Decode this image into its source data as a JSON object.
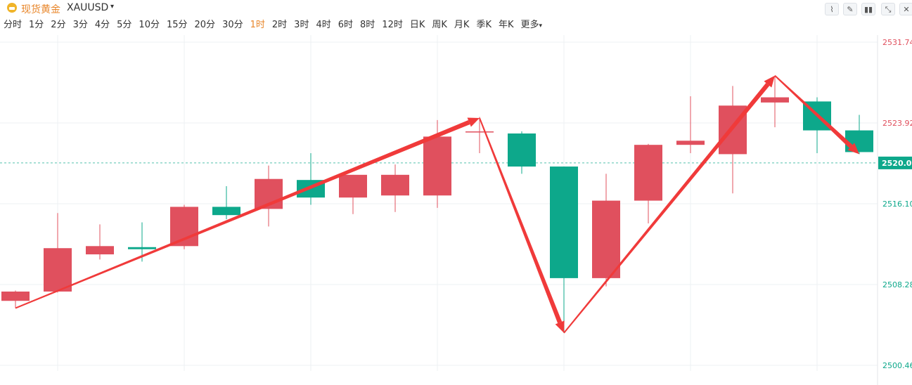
{
  "header": {
    "name": "现货黄金",
    "symbol": "XAUUSD",
    "caret": "▾",
    "tools_left": [
      "indicator-icon",
      "pen-icon",
      "candle-icon"
    ],
    "tools_right": [
      "collapse-icon",
      "close-icon"
    ],
    "tool_glyphs": [
      "⌇",
      "✎",
      "▮▮",
      "⤡",
      "✕"
    ]
  },
  "periods": [
    {
      "label": "分时"
    },
    {
      "label": "1分"
    },
    {
      "label": "2分"
    },
    {
      "label": "3分"
    },
    {
      "label": "4分"
    },
    {
      "label": "5分"
    },
    {
      "label": "10分"
    },
    {
      "label": "15分"
    },
    {
      "label": "20分"
    },
    {
      "label": "30分"
    },
    {
      "label": "1时",
      "active": true
    },
    {
      "label": "2时"
    },
    {
      "label": "3时"
    },
    {
      "label": "4时"
    },
    {
      "label": "6时"
    },
    {
      "label": "8时"
    },
    {
      "label": "12时"
    },
    {
      "label": "日K"
    },
    {
      "label": "周K"
    },
    {
      "label": "月K"
    },
    {
      "label": "季K"
    },
    {
      "label": "年K"
    },
    {
      "label": "更多"
    }
  ],
  "more_caret": "▾",
  "colors": {
    "up": "#e0505e",
    "down": "#0da88b",
    "arrow": "#f03a3a",
    "grid": "#eef0f3",
    "price_tag_bg": "#0da88b"
  },
  "chart_data": {
    "type": "candlestick",
    "ylim": [
      2500.46,
      2531.74
    ],
    "yticks": [
      {
        "label": "2531.74",
        "value": 2531.74,
        "color": "#e0505e"
      },
      {
        "label": "2523.92",
        "value": 2523.92,
        "color": "#e0505e"
      },
      {
        "label": "2516.10",
        "value": 2516.1,
        "color": "#0da88b"
      },
      {
        "label": "2508.28",
        "value": 2508.28,
        "color": "#0da88b"
      },
      {
        "label": "2500.46",
        "value": 2500.46,
        "color": "#0da88b"
      }
    ],
    "current_price": {
      "label": "2520.0",
      "value": 2520.05
    },
    "candles": [
      {
        "open": 2506.7,
        "close": 2507.6,
        "high": 2507.7,
        "low": 2506.0
      },
      {
        "open": 2507.6,
        "close": 2511.8,
        "high": 2515.2,
        "low": 2507.5
      },
      {
        "open": 2511.2,
        "close": 2512.0,
        "high": 2514.1,
        "low": 2510.7
      },
      {
        "open": 2511.9,
        "close": 2511.7,
        "high": 2514.3,
        "low": 2510.5
      },
      {
        "open": 2512.0,
        "close": 2515.8,
        "high": 2516.0,
        "low": 2511.7
      },
      {
        "open": 2515.8,
        "close": 2515.0,
        "high": 2517.8,
        "low": 2514.6
      },
      {
        "open": 2515.6,
        "close": 2518.5,
        "high": 2519.8,
        "low": 2513.9
      },
      {
        "open": 2518.4,
        "close": 2516.7,
        "high": 2521.0,
        "low": 2516.0
      },
      {
        "open": 2516.7,
        "close": 2518.9,
        "high": 2518.9,
        "low": 2515.1
      },
      {
        "open": 2516.9,
        "close": 2518.9,
        "high": 2519.9,
        "low": 2515.3
      },
      {
        "open": 2516.9,
        "close": 2522.6,
        "high": 2524.2,
        "low": 2515.7
      },
      {
        "open": 2523.1,
        "close": 2523.1,
        "high": 2524.5,
        "low": 2521.0
      },
      {
        "open": 2522.9,
        "close": 2519.7,
        "high": 2523.1,
        "low": 2519.0
      },
      {
        "open": 2519.7,
        "close": 2508.9,
        "high": 2519.7,
        "low": 2503.6
      },
      {
        "open": 2508.9,
        "close": 2516.4,
        "high": 2519.0,
        "low": 2508.1
      },
      {
        "open": 2516.4,
        "close": 2521.8,
        "high": 2521.9,
        "low": 2514.2
      },
      {
        "open": 2521.8,
        "close": 2522.2,
        "high": 2526.5,
        "low": 2521.0
      },
      {
        "open": 2520.9,
        "close": 2525.6,
        "high": 2527.5,
        "low": 2517.1
      },
      {
        "open": 2525.9,
        "close": 2526.4,
        "high": 2528.5,
        "low": 2523.5
      },
      {
        "open": 2526.0,
        "close": 2523.2,
        "high": 2526.4,
        "low": 2521.0
      },
      {
        "open": 2523.2,
        "close": 2521.1,
        "high": 2524.7,
        "low": 2520.9
      }
    ],
    "annotations": [
      {
        "from": {
          "index": 0,
          "price": 2506.0
        },
        "to": {
          "index": 11,
          "price": 2524.4
        },
        "style": "arrow"
      },
      {
        "from": {
          "index": 11,
          "price": 2524.4
        },
        "to": {
          "index": 13,
          "price": 2503.6
        },
        "style": "arrow"
      },
      {
        "from": {
          "index": 13,
          "price": 2503.6
        },
        "to": {
          "index": 18,
          "price": 2528.5
        },
        "style": "arrow"
      },
      {
        "from": {
          "index": 18,
          "price": 2528.5
        },
        "to": {
          "index": 20,
          "price": 2520.9
        },
        "style": "arrow"
      }
    ]
  }
}
